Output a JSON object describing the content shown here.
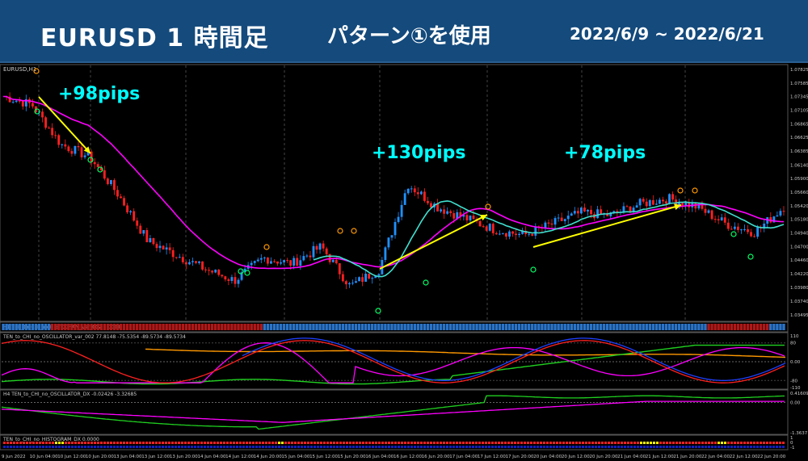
{
  "header": {
    "pair_title": "EURUSD 1 時間足",
    "pattern_title": "パターン①を使用",
    "date_range": "2022/6/9 ~ 2022/6/21"
  },
  "colors": {
    "header_bg": "#144a7c",
    "bull": "#1e90ff",
    "bear": "#ff2020",
    "ma_magenta": "#ff00ff",
    "ma_cyan": "#40e0d0",
    "annotation": "#00ffff",
    "arrow": "#ffff00"
  },
  "annotations": [
    {
      "text": "+98pips"
    },
    {
      "text": "+130pips"
    },
    {
      "text": "+78pips"
    }
  ],
  "main_panel": {
    "label": "EURUSD,H1",
    "price_labels": [
      "1.07825",
      "1.07585",
      "1.07345",
      "1.07105",
      "1.06865",
      "1.06625",
      "1.06385",
      "1.06140",
      "1.05900",
      "1.05660",
      "1.05420",
      "1.05180",
      "1.04940",
      "1.04700",
      "1.04460",
      "1.04220",
      "1.03980",
      "1.03740",
      "1.03495"
    ]
  },
  "histogram_panel": {
    "label": "H1 TEN_to_CHI_no_HISTOGRAM_var_002 1.0000"
  },
  "oscillator_panel": {
    "label": "TEN_to_CHI_no_OSCILLATOR_var_002 77.8148 -75.5354 -89.5734 -89.5734",
    "axis_labels": [
      "110",
      "80",
      "0.00",
      "-80",
      "-110"
    ]
  },
  "dx_panel": {
    "label": "H4 TEN_to_CHI_no_OSCILLATOR_DX -0.02426 -3.32685",
    "axis_labels": [
      "0.41609",
      "0.00",
      "-1.3637"
    ]
  },
  "hist_dx_panel": {
    "label": "TEN_to_CHI_no_HISTOGRAM_DX 0.0000",
    "axis_labels": [
      "1",
      "0",
      "-1"
    ]
  },
  "time_labels": [
    "9 Jun 2022",
    "10 Jun 04:00",
    "10 Jun 12:00",
    "10 Jun 20:00",
    "13 Jun 04:00",
    "13 Jun 12:00",
    "13 Jun 20:00",
    "14 Jun 04:00",
    "14 Jun 12:00",
    "14 Jun 20:00",
    "15 Jun 04:00",
    "15 Jun 12:00",
    "15 Jun 20:00",
    "16 Jun 04:00",
    "16 Jun 12:00",
    "16 Jun 20:00",
    "17 Jun 04:00",
    "17 Jun 12:00",
    "17 Jun 20:00",
    "20 Jun 04:00",
    "20 Jun 12:00",
    "20 Jun 20:00",
    "21 Jun 04:00",
    "21 Jun 12:00",
    "21 Jun 20:00",
    "22 Jun 04:00",
    "22 Jun 12:00",
    "22 Jun 20:00"
  ],
  "chart_data": {
    "type": "line",
    "symbol": "EURUSD",
    "timeframe": "H1",
    "ylim": [
      1.03495,
      1.07825
    ],
    "series": [
      {
        "name": "EURUSD,H1",
        "x": [
          "9 Jun",
          "10 Jun 04:00",
          "10 Jun 12:00",
          "10 Jun 20:00",
          "13 Jun 04:00",
          "13 Jun 12:00",
          "13 Jun 20:00",
          "14 Jun 04:00",
          "14 Jun 12:00",
          "14 Jun 20:00",
          "15 Jun 04:00",
          "15 Jun 12:00",
          "15 Jun 20:00",
          "16 Jun 04:00",
          "16 Jun 12:00",
          "16 Jun 20:00",
          "17 Jun 04:00",
          "17 Jun 12:00",
          "17 Jun 20:00",
          "20 Jun 04:00",
          "20 Jun 12:00",
          "20 Jun 20:00",
          "21 Jun 04:00",
          "21 Jun 12:00",
          "21 Jun 20:00",
          "22 Jun 04:00",
          "22 Jun 12:00",
          "22 Jun 20:00"
        ],
        "values": [
          1.0735,
          1.072,
          1.065,
          1.0628,
          1.056,
          1.048,
          1.0455,
          1.043,
          1.041,
          1.045,
          1.044,
          1.047,
          1.04,
          1.043,
          1.058,
          1.054,
          1.052,
          1.05,
          1.049,
          1.051,
          1.053,
          1.0525,
          1.0545,
          1.0555,
          1.054,
          1.051,
          1.0495,
          1.054
        ]
      }
    ]
  }
}
